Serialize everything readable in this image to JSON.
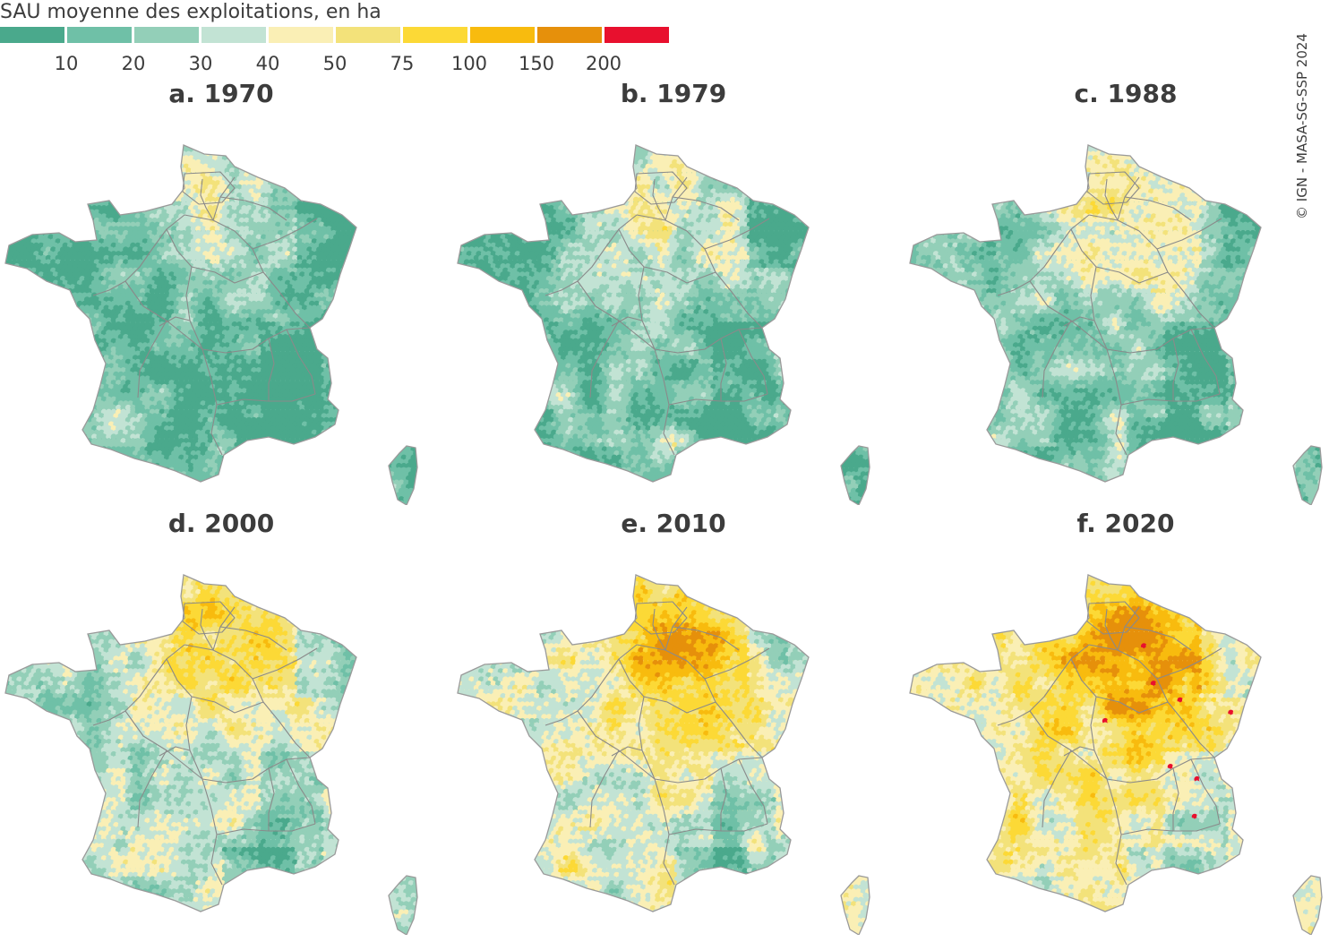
{
  "legend": {
    "title": "SAU moyenne des exploitations, en ha",
    "colors": [
      "#4aa98c",
      "#6fc0a7",
      "#93cfb8",
      "#c2e3d4",
      "#faefb5",
      "#f3e27a",
      "#fcd936",
      "#f8bb0e",
      "#e6900b",
      "#e8102e"
    ],
    "ticks": [
      "10",
      "20",
      "30",
      "40",
      "50",
      "75",
      "100",
      "150",
      "200"
    ]
  },
  "credit": "© IGN - MASA-SG-SSP 2024",
  "panels": [
    {
      "title": "a. 1970",
      "level": 0.12
    },
    {
      "title": "b. 1979",
      "level": 0.2
    },
    {
      "title": "c. 1988",
      "level": 0.3
    },
    {
      "title": "d. 2000",
      "level": 0.48
    },
    {
      "title": "e. 2010",
      "level": 0.62
    },
    {
      "title": "f. 2020",
      "level": 0.78
    }
  ]
}
